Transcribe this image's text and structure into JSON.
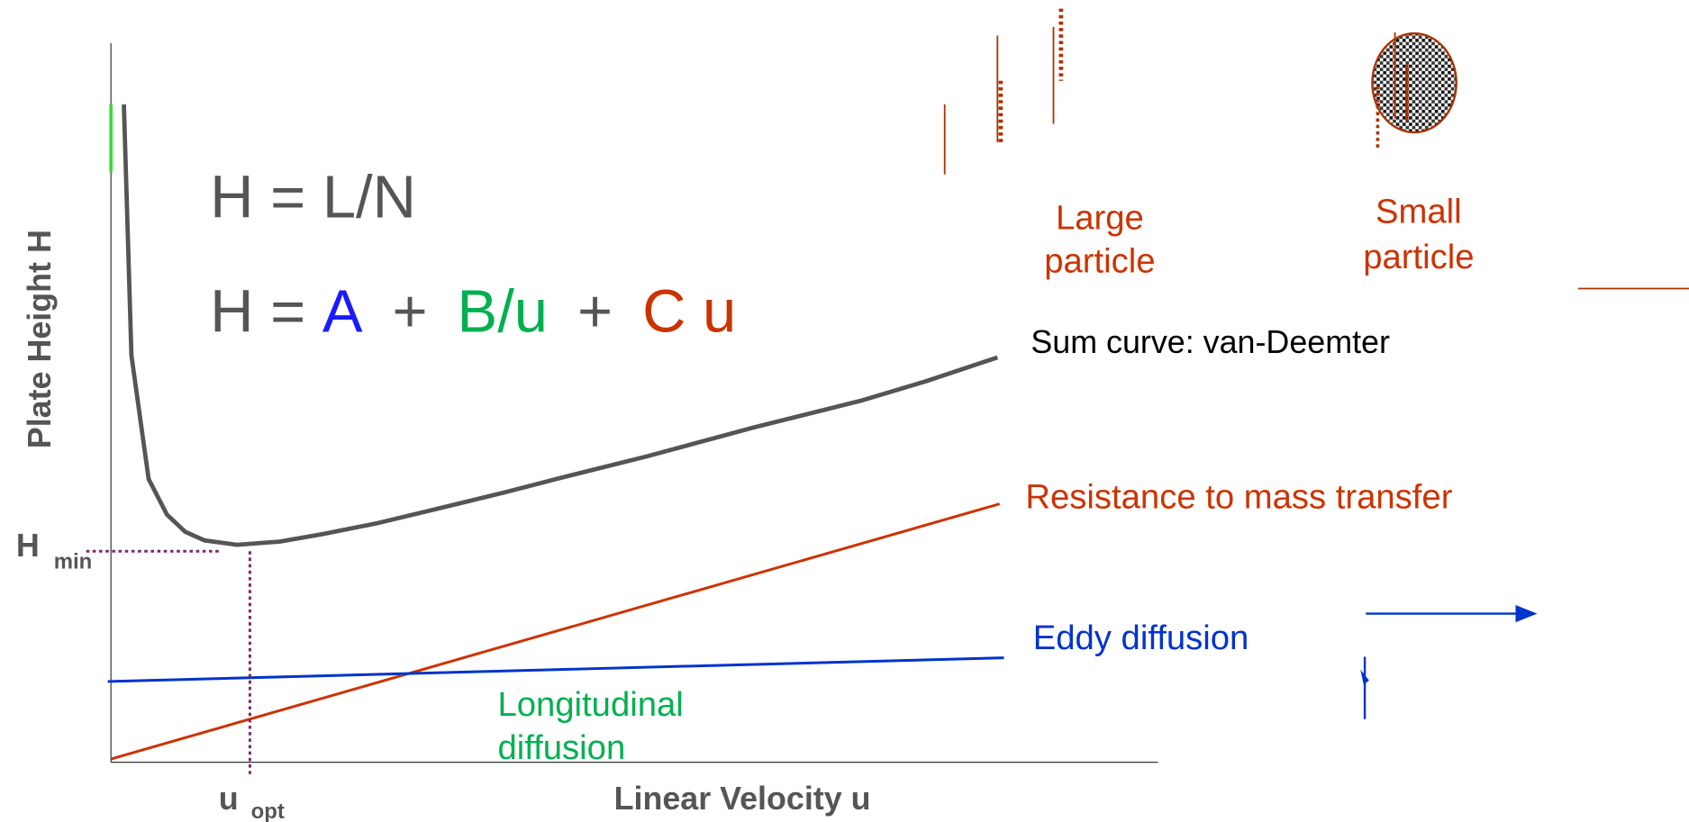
{
  "axes": {
    "y_label": "Plate Height  H",
    "x_label": "Linear Velocity  u"
  },
  "equations": {
    "definition": "H = L/N",
    "van_deemter": {
      "prefix": "H =",
      "a": "A",
      "plus1": "+",
      "b": "B/u",
      "plus2": "+",
      "c": "C u"
    }
  },
  "curve_labels": {
    "sum": "Sum curve: van-Deemter",
    "mass_transfer": "Resistance to mass transfer",
    "eddy": "Eddy diffusion",
    "longitudinal": [
      "Longitudinal",
      "diffusion"
    ]
  },
  "markers": {
    "h_min": {
      "symbol": "H",
      "subscript": "min"
    },
    "u_opt": {
      "symbol": "u",
      "subscript": "opt"
    }
  },
  "particles": {
    "large": [
      "Large",
      "particle"
    ],
    "small": [
      "Small",
      "particle"
    ]
  }
}
